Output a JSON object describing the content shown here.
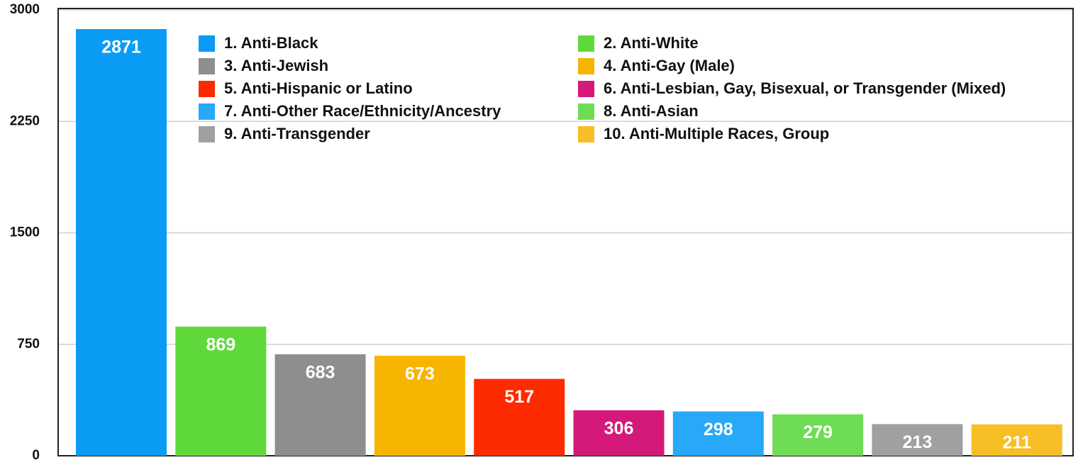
{
  "chart_data": {
    "type": "bar",
    "categories": [
      "1. Anti-Black",
      "2. Anti-White",
      "3. Anti-Jewish",
      "4. Anti-Gay (Male)",
      "5. Anti-Hispanic or Latino",
      "6. Anti-Lesbian, Gay, Bisexual, or Transgender (Mixed)",
      "7. Anti-Other Race/Ethnicity/Ancestry",
      "8. Anti-Asian",
      "9. Anti-Transgender",
      "10. Anti-Multiple Races, Group"
    ],
    "values": [
      2871,
      869,
      683,
      673,
      517,
      306,
      298,
      279,
      213,
      211
    ],
    "colors": [
      "#0a9cf5",
      "#5fd93a",
      "#8e8e8e",
      "#f6b500",
      "#fe2a00",
      "#d4197a",
      "#27a8f8",
      "#6fdc55",
      "#a0a0a0",
      "#f7bf25"
    ],
    "ylim": [
      0,
      3000
    ],
    "yticks": [
      0,
      750,
      1500,
      2250,
      3000
    ],
    "grid": true,
    "legend": "top"
  }
}
